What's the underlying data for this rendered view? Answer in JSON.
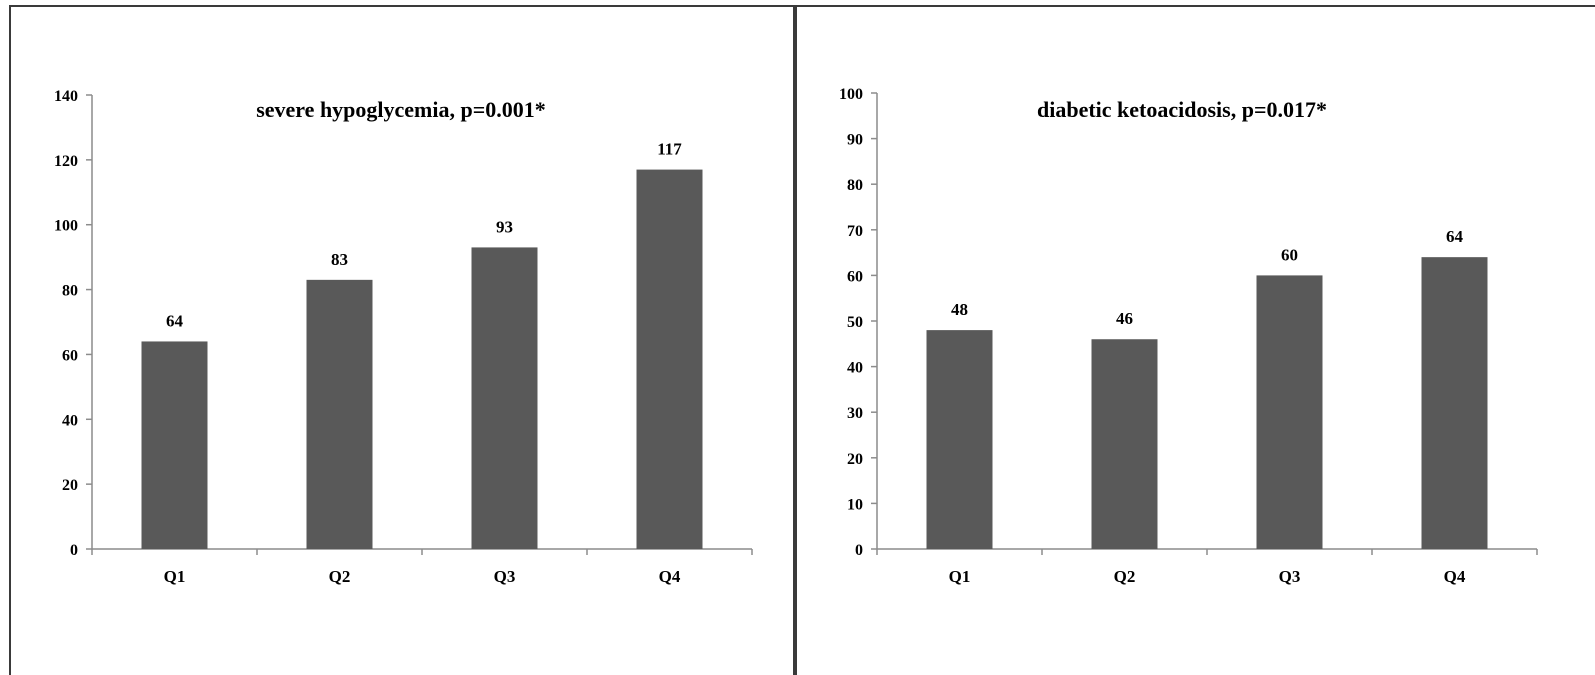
{
  "chart_data": [
    {
      "type": "bar",
      "title": "severe hypoglycemia, p=0.001*",
      "xlabel": "",
      "ylabel": "",
      "categories": [
        "Q1",
        "Q2",
        "Q3",
        "Q4"
      ],
      "values": [
        64,
        83,
        93,
        117
      ],
      "ylim": [
        0,
        140
      ],
      "yticks": [
        0,
        20,
        40,
        60,
        80,
        100,
        120,
        140
      ],
      "grid": false,
      "data_labels": true,
      "bar_color": "#595959"
    },
    {
      "type": "bar",
      "title": "diabetic ketoacidosis, p=0.017*",
      "xlabel": "",
      "ylabel": "",
      "categories": [
        "Q1",
        "Q2",
        "Q3",
        "Q4"
      ],
      "values": [
        48,
        46,
        60,
        64
      ],
      "ylim": [
        0,
        100
      ],
      "yticks": [
        0,
        10,
        20,
        30,
        40,
        50,
        60,
        70,
        80,
        90,
        100
      ],
      "grid": false,
      "data_labels": true,
      "bar_color": "#595959"
    }
  ]
}
